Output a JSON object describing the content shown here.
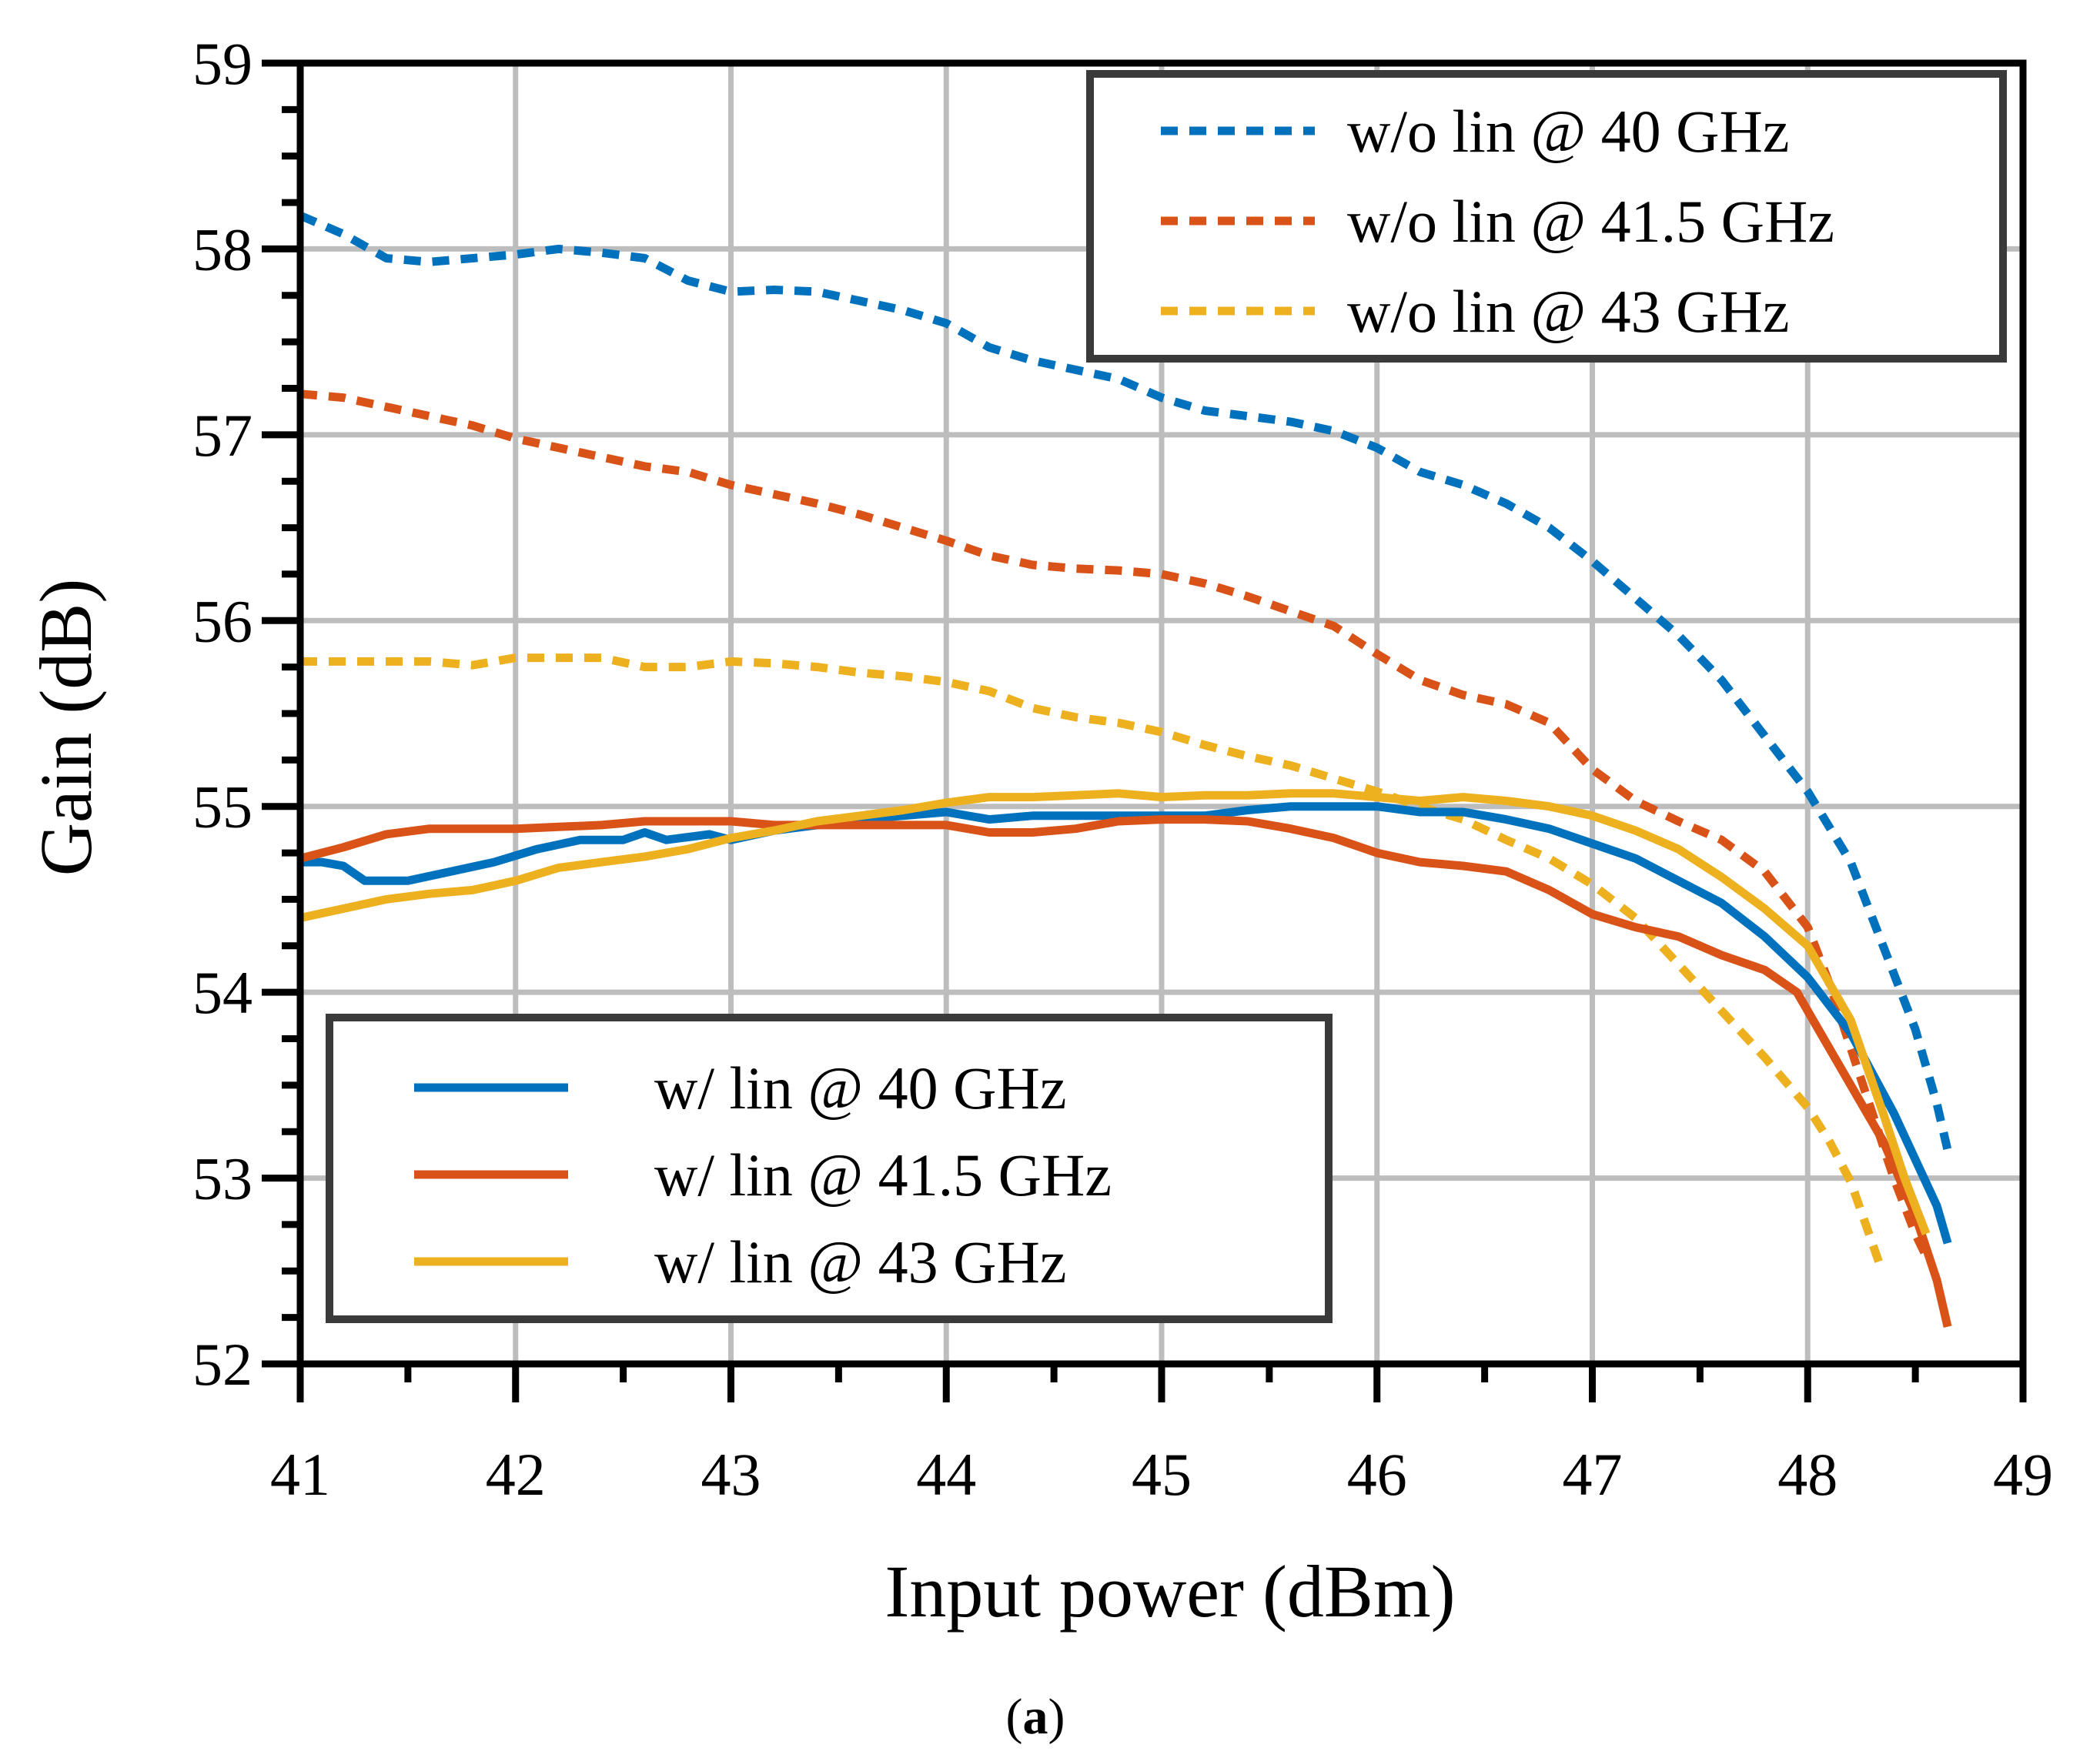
{
  "chart_data": {
    "type": "line",
    "xlabel": "Input power (dBm)",
    "ylabel": "Gain (dB)",
    "caption_open": "(",
    "caption_letter": "a",
    "caption_close": ")",
    "xlim": [
      41,
      49
    ],
    "ylim": [
      52,
      59
    ],
    "xticks": [
      41,
      42,
      43,
      44,
      45,
      46,
      47,
      48,
      49
    ],
    "yticks": [
      52,
      53,
      54,
      55,
      56,
      57,
      58,
      59
    ],
    "grid": true,
    "legends": [
      {
        "placement": "top-right",
        "entries": [
          "w/o lin @ 40 GHz",
          "w/o lin @ 41.5 GHz",
          "w/o lin @ 43 GHz"
        ]
      },
      {
        "placement": "bottom-left",
        "entries": [
          "w/ lin @ 40 GHz",
          "w/ lin @ 41.5 GHz",
          "w/ lin @ 43 GHz"
        ]
      }
    ],
    "series": [
      {
        "name": "w/o lin @ 40 GHz",
        "color": "#0072BD",
        "dashed": true,
        "x": [
          41,
          41.2,
          41.4,
          41.6,
          41.8,
          42,
          42.2,
          42.4,
          42.6,
          42.8,
          43,
          43.2,
          43.4,
          43.6,
          43.8,
          44,
          44.2,
          44.4,
          44.6,
          44.8,
          45,
          45.2,
          45.4,
          45.6,
          45.8,
          46,
          46.2,
          46.4,
          46.6,
          46.8,
          47,
          47.2,
          47.4,
          47.6,
          47.8,
          48,
          48.2,
          48.35,
          48.5,
          48.6,
          48.65
        ],
        "y": [
          58.18,
          58.08,
          57.95,
          57.93,
          57.95,
          57.97,
          58.0,
          57.98,
          57.95,
          57.83,
          57.77,
          57.78,
          57.77,
          57.72,
          57.67,
          57.6,
          57.47,
          57.4,
          57.35,
          57.3,
          57.2,
          57.13,
          57.1,
          57.07,
          57.02,
          56.93,
          56.8,
          56.73,
          56.63,
          56.5,
          56.32,
          56.12,
          55.92,
          55.68,
          55.38,
          55.08,
          54.7,
          54.25,
          53.8,
          53.4,
          53.15
        ]
      },
      {
        "name": "w/o lin @ 41.5 GHz",
        "color": "#D95319",
        "dashed": true,
        "x": [
          41,
          41.2,
          41.4,
          41.6,
          41.8,
          42,
          42.2,
          42.4,
          42.6,
          42.8,
          43,
          43.2,
          43.4,
          43.6,
          43.8,
          44,
          44.2,
          44.4,
          44.6,
          44.8,
          45,
          45.2,
          45.4,
          45.6,
          45.8,
          46,
          46.2,
          46.4,
          46.6,
          46.8,
          47,
          47.2,
          47.4,
          47.6,
          47.8,
          48,
          48.1,
          48.2,
          48.3,
          48.4,
          48.5,
          48.55
        ],
        "y": [
          57.22,
          57.2,
          57.15,
          57.1,
          57.05,
          56.98,
          56.93,
          56.88,
          56.83,
          56.8,
          56.73,
          56.68,
          56.63,
          56.57,
          56.5,
          56.43,
          56.35,
          56.3,
          56.28,
          56.27,
          56.25,
          56.2,
          56.13,
          56.05,
          55.97,
          55.82,
          55.68,
          55.6,
          55.55,
          55.45,
          55.2,
          55.03,
          54.92,
          54.82,
          54.65,
          54.35,
          54.05,
          53.7,
          53.35,
          53.0,
          52.7,
          52.58
        ]
      },
      {
        "name": "w/o lin @ 43 GHz",
        "color": "#EDB120",
        "dashed": true,
        "x": [
          41,
          41.2,
          41.4,
          41.6,
          41.8,
          42,
          42.2,
          42.4,
          42.6,
          42.8,
          43,
          43.2,
          43.4,
          43.6,
          43.8,
          44,
          44.2,
          44.4,
          44.6,
          44.8,
          45,
          45.2,
          45.4,
          45.6,
          45.8,
          46,
          46.2,
          46.4,
          46.6,
          46.8,
          47,
          47.2,
          47.4,
          47.6,
          47.8,
          48,
          48.1,
          48.2,
          48.3,
          48.33
        ],
        "y": [
          55.78,
          55.78,
          55.78,
          55.78,
          55.76,
          55.8,
          55.8,
          55.8,
          55.75,
          55.75,
          55.78,
          55.77,
          55.75,
          55.72,
          55.7,
          55.67,
          55.62,
          55.53,
          55.48,
          55.45,
          55.4,
          55.33,
          55.27,
          55.22,
          55.15,
          55.08,
          55.0,
          54.93,
          54.82,
          54.72,
          54.58,
          54.4,
          54.15,
          53.9,
          53.65,
          53.38,
          53.2,
          52.98,
          52.65,
          52.55
        ]
      },
      {
        "name": "w/ lin @ 40 GHz",
        "color": "#0072BD",
        "dashed": false,
        "x": [
          41,
          41.1,
          41.2,
          41.3,
          41.5,
          41.7,
          41.9,
          42.1,
          42.3,
          42.5,
          42.6,
          42.7,
          42.9,
          43,
          43.2,
          43.4,
          43.6,
          43.8,
          44,
          44.2,
          44.4,
          44.6,
          44.8,
          45,
          45.2,
          45.4,
          45.6,
          45.8,
          46,
          46.2,
          46.4,
          46.6,
          46.8,
          47,
          47.2,
          47.4,
          47.6,
          47.8,
          48,
          48.2,
          48.4,
          48.5,
          48.6,
          48.65
        ],
        "y": [
          54.7,
          54.7,
          54.68,
          54.6,
          54.6,
          54.65,
          54.7,
          54.77,
          54.82,
          54.82,
          54.86,
          54.82,
          54.85,
          54.82,
          54.87,
          54.9,
          54.93,
          54.95,
          54.97,
          54.93,
          54.95,
          54.95,
          54.95,
          54.95,
          54.95,
          54.98,
          55.0,
          55.0,
          55.0,
          54.97,
          54.97,
          54.93,
          54.88,
          54.8,
          54.72,
          54.6,
          54.48,
          54.3,
          54.08,
          53.78,
          53.35,
          53.1,
          52.85,
          52.65
        ]
      },
      {
        "name": "w/ lin @ 41.5 GHz",
        "color": "#D95319",
        "dashed": false,
        "x": [
          41,
          41.2,
          41.4,
          41.6,
          41.8,
          42,
          42.2,
          42.4,
          42.6,
          42.8,
          43,
          43.2,
          43.4,
          43.6,
          43.8,
          44,
          44.2,
          44.4,
          44.6,
          44.8,
          45,
          45.2,
          45.4,
          45.6,
          45.8,
          46,
          46.2,
          46.4,
          46.6,
          46.8,
          47,
          47.2,
          47.4,
          47.6,
          47.8,
          47.95,
          48.05,
          48.2,
          48.35,
          48.5,
          48.6,
          48.65
        ],
        "y": [
          54.72,
          54.78,
          54.85,
          54.88,
          54.88,
          54.88,
          54.89,
          54.9,
          54.92,
          54.92,
          54.92,
          54.9,
          54.9,
          54.9,
          54.9,
          54.9,
          54.86,
          54.86,
          54.88,
          54.92,
          54.93,
          54.93,
          54.92,
          54.88,
          54.83,
          54.75,
          54.7,
          54.68,
          54.65,
          54.55,
          54.42,
          54.35,
          54.3,
          54.2,
          54.12,
          54.0,
          53.8,
          53.5,
          53.2,
          52.8,
          52.45,
          52.2
        ]
      },
      {
        "name": "w/ lin @ 43 GHz",
        "color": "#EDB120",
        "dashed": false,
        "x": [
          41,
          41.2,
          41.4,
          41.6,
          41.8,
          42,
          42.2,
          42.4,
          42.6,
          42.8,
          43,
          43.2,
          43.4,
          43.6,
          43.8,
          44,
          44.2,
          44.4,
          44.6,
          44.8,
          45,
          45.2,
          45.4,
          45.6,
          45.8,
          46,
          46.2,
          46.4,
          46.6,
          46.8,
          47,
          47.2,
          47.4,
          47.6,
          47.8,
          48,
          48.2,
          48.35,
          48.45,
          48.55
        ],
        "y": [
          54.4,
          54.45,
          54.5,
          54.53,
          54.55,
          54.6,
          54.67,
          54.7,
          54.73,
          54.77,
          54.83,
          54.87,
          54.92,
          54.95,
          54.98,
          55.02,
          55.05,
          55.05,
          55.06,
          55.07,
          55.05,
          55.06,
          55.06,
          55.07,
          55.07,
          55.05,
          55.03,
          55.05,
          55.03,
          55.0,
          54.95,
          54.87,
          54.77,
          54.62,
          54.45,
          54.25,
          53.85,
          53.35,
          53.0,
          52.7
        ]
      }
    ]
  }
}
